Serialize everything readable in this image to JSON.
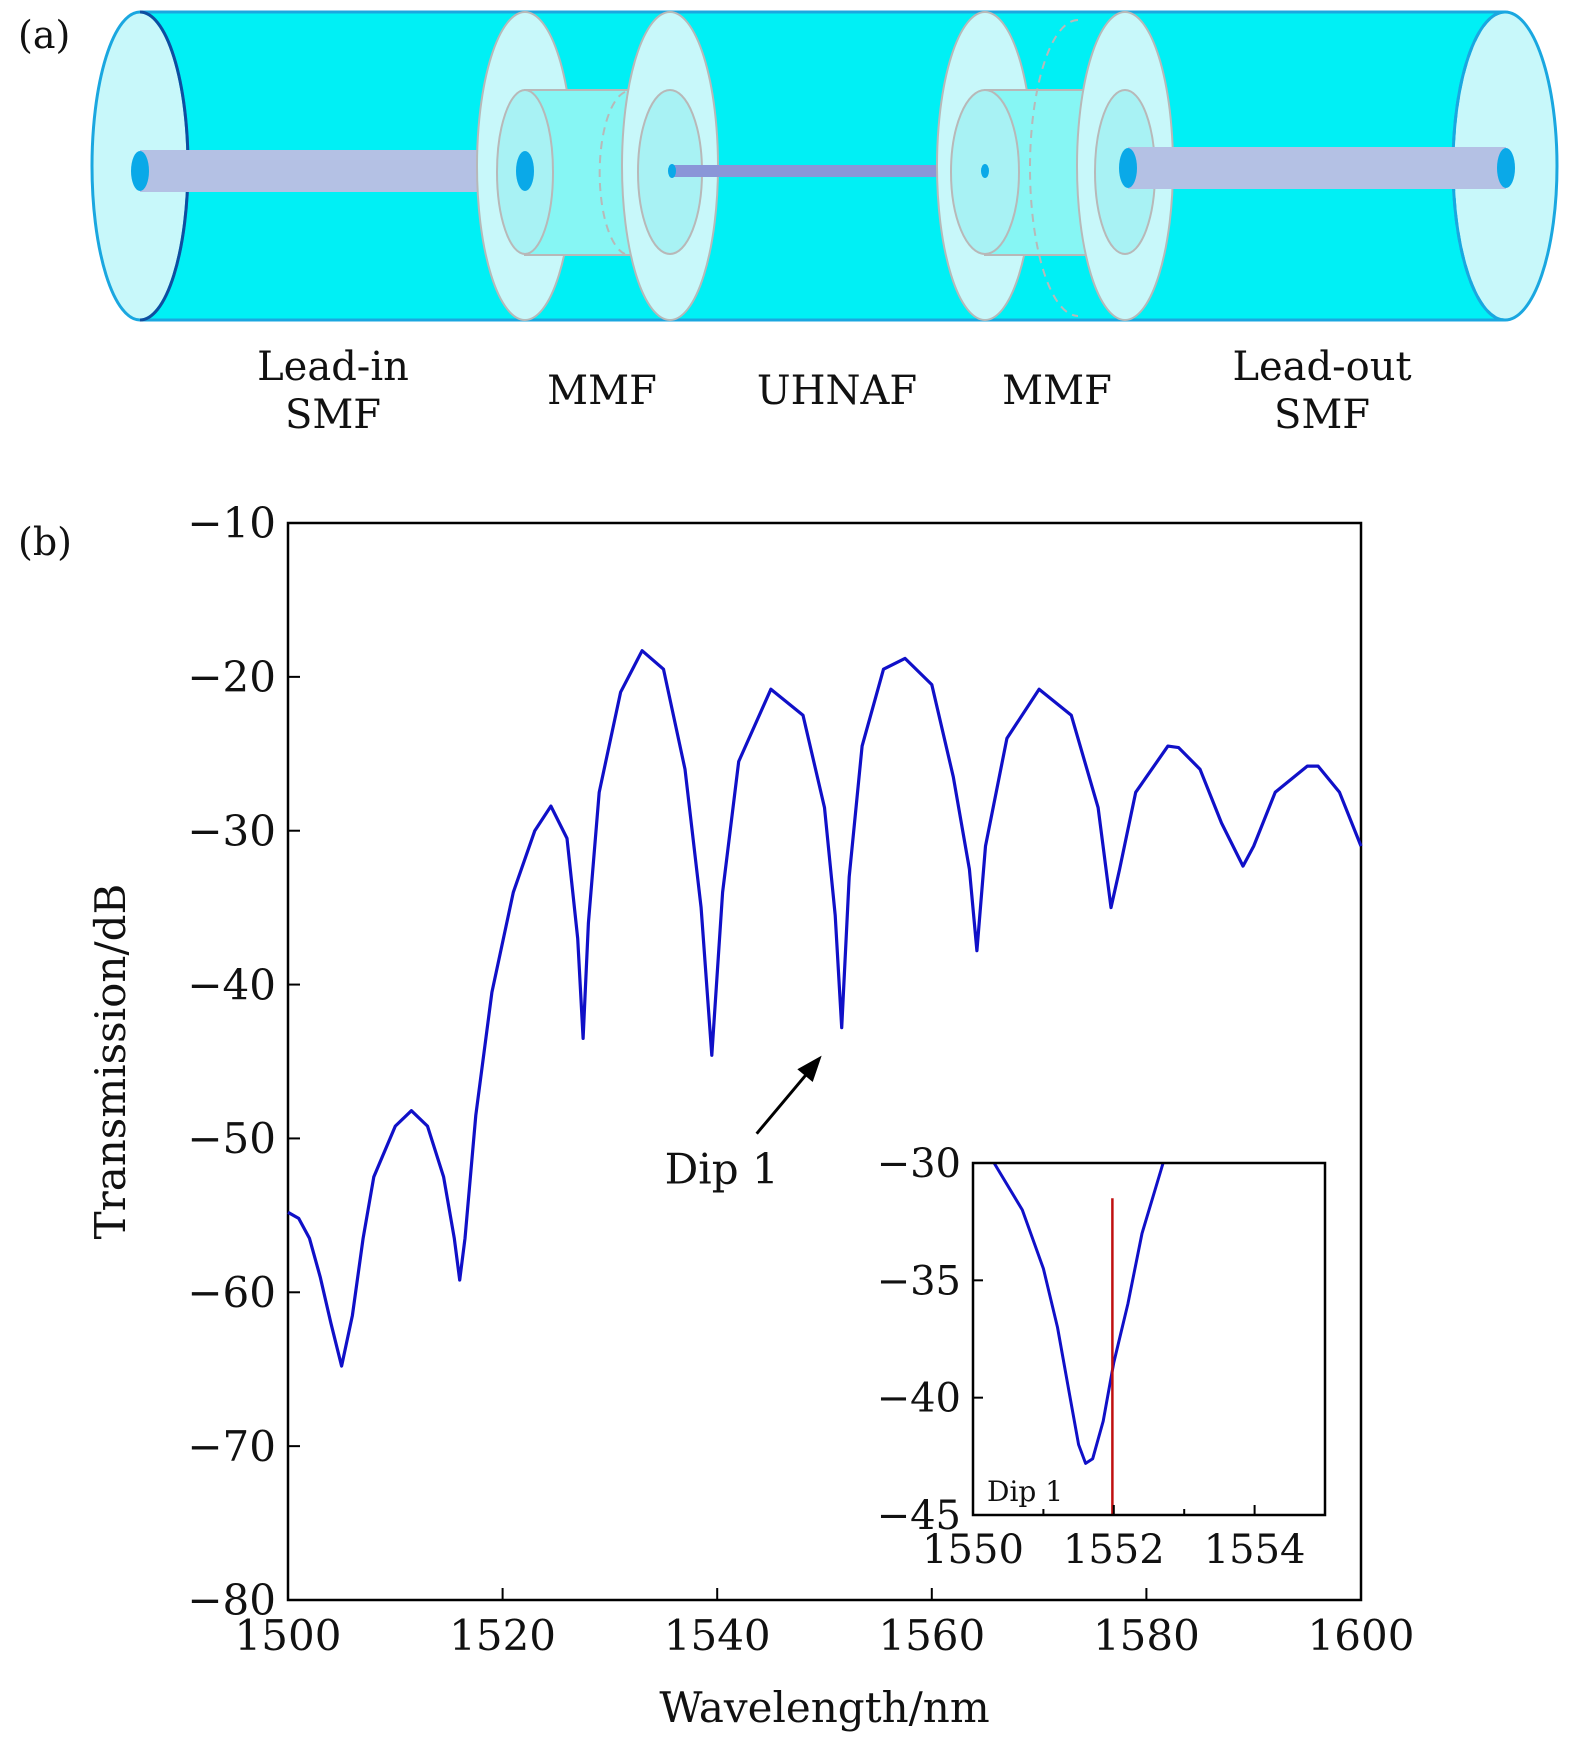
{
  "panel_a": {
    "panel_label": "(a)",
    "segments": [
      {
        "id": "lead-in-smf",
        "lines": [
          "Lead-in",
          "SMF"
        ]
      },
      {
        "id": "mmf-left",
        "lines": [
          "MMF"
        ]
      },
      {
        "id": "uhnaf",
        "lines": [
          "UHNAF"
        ]
      },
      {
        "id": "mmf-right",
        "lines": [
          "MMF"
        ]
      },
      {
        "id": "lead-out-smf",
        "lines": [
          "Lead-out",
          "SMF"
        ]
      }
    ],
    "colors": {
      "cladding": "#00f0f5",
      "cladding_edge": "#1aa7e0",
      "disc": "#c8f8fa",
      "core": "#b4c1e4",
      "core_end": "#0aa9e8"
    }
  },
  "panel_b": {
    "panel_label": "(b)",
    "annotation": "Dip 1",
    "colors": {
      "curve": "#1010c8",
      "marker": "#c01010",
      "arrow": "#000000"
    }
  },
  "chart_data": [
    {
      "type": "line",
      "title": "",
      "xlabel": "Wavelength/nm",
      "ylabel": "Transmission/dB",
      "xlim": [
        1500,
        1600
      ],
      "ylim": [
        -80,
        -10
      ],
      "xticks": [
        1500,
        1520,
        1540,
        1560,
        1580,
        1600
      ],
      "yticks": [
        -80,
        -70,
        -60,
        -50,
        -40,
        -30,
        -20,
        -10
      ],
      "xtick_labels": [
        "1500",
        "1520",
        "1540",
        "1560",
        "1580",
        "1600"
      ],
      "ytick_labels": [
        "−80",
        "−70",
        "−60",
        "−50",
        "−40",
        "−30",
        "−20",
        "−10"
      ],
      "grid": false,
      "series": [
        {
          "x": [
            1500,
            1501,
            1502,
            1503,
            1504,
            1505,
            1506,
            1507,
            1508,
            1510,
            1511.5,
            1513,
            1514.5,
            1515.5,
            1516,
            1516.5,
            1517.5,
            1519,
            1521,
            1523,
            1524.5,
            1526,
            1527,
            1527.5,
            1528,
            1529,
            1531,
            1533,
            1535,
            1537,
            1538.5,
            1539.5,
            1540.5,
            1542,
            1545,
            1548,
            1550,
            1551,
            1551.6,
            1552.3,
            1553.5,
            1555.5,
            1557.5,
            1560,
            1562,
            1563.5,
            1564.2,
            1565,
            1567,
            1570,
            1573,
            1575.5,
            1576.7,
            1577.5,
            1579,
            1582,
            1583,
            1585,
            1587,
            1589,
            1590,
            1592,
            1595,
            1596,
            1598,
            1600
          ],
          "y": [
            -54.8,
            -55.2,
            -56.5,
            -59,
            -62,
            -64.8,
            -61.5,
            -56.5,
            -52.5,
            -49.2,
            -48.2,
            -49.2,
            -52.5,
            -56.5,
            -59.2,
            -56.5,
            -48.5,
            -40.5,
            -34,
            -30,
            -28.4,
            -30.5,
            -37,
            -43.5,
            -36,
            -27.5,
            -21,
            -18.3,
            -19.5,
            -26,
            -35,
            -44.6,
            -34,
            -25.5,
            -20.8,
            -22.5,
            -28.5,
            -35.5,
            -42.8,
            -33,
            -24.5,
            -19.5,
            -18.8,
            -20.5,
            -26.5,
            -32.5,
            -37.8,
            -31,
            -24,
            -20.8,
            -22.5,
            -28.5,
            -35,
            -32.5,
            -27.5,
            -24.5,
            -24.6,
            -26,
            -29.5,
            -32.3,
            -31,
            -27.5,
            -25.8,
            -25.8,
            -27.5,
            -31
          ]
        }
      ],
      "annotations": [
        {
          "text": "Dip 1",
          "points_to": [
            1551.6,
            -42.8
          ]
        }
      ]
    },
    {
      "type": "line",
      "title": "",
      "xlabel": "",
      "ylabel": "",
      "xlim": [
        1550,
        1555
      ],
      "ylim": [
        -45,
        -30
      ],
      "xticks": [
        1550,
        1552,
        1554
      ],
      "yticks": [
        -45,
        -40,
        -35,
        -30
      ],
      "xtick_labels": [
        "1550",
        "1552",
        "1554"
      ],
      "ytick_labels": [
        "−45",
        "−40",
        "−35",
        "−30"
      ],
      "grid": false,
      "series": [
        {
          "x": [
            1550.3,
            1550.7,
            1551.0,
            1551.2,
            1551.35,
            1551.5,
            1551.6,
            1551.7,
            1551.85,
            1552.0,
            1552.2,
            1552.4,
            1552.7
          ],
          "y": [
            -30,
            -32,
            -34.5,
            -37,
            -39.5,
            -42,
            -42.8,
            -42.6,
            -41,
            -38.5,
            -36,
            -33,
            -30
          ]
        }
      ],
      "marker_line": {
        "x": 1551.98,
        "y_range": [
          -45,
          -31.5
        ]
      },
      "annotations": [
        {
          "text": "Dip 1"
        }
      ]
    }
  ]
}
